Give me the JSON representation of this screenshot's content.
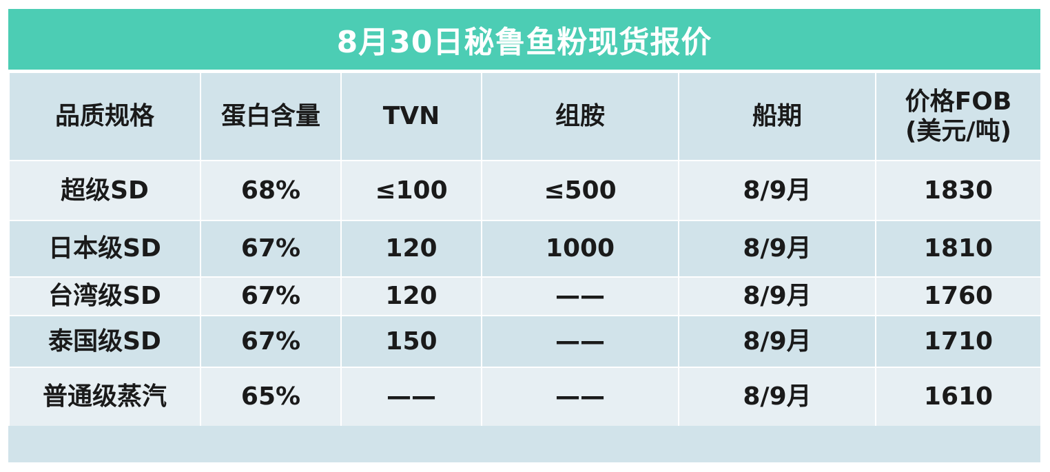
{
  "title": "8月30日秘鲁鱼粉现货报价",
  "columns": [
    "品质规格",
    "蛋白含量",
    "TVN",
    "组胺",
    "船期"
  ],
  "price_header": {
    "line1": "价格FOB",
    "line2": "(美元/吨)"
  },
  "rows": [
    [
      "超级SD",
      "68%",
      "≤100",
      "≤500",
      "8/9月",
      "1830"
    ],
    [
      "日本级SD",
      "67%",
      "120",
      "1000",
      "8/9月",
      "1810"
    ],
    [
      "台湾级SD",
      "67%",
      "120",
      "——",
      "8/9月",
      "1760"
    ],
    [
      "泰国级SD",
      "67%",
      "150",
      "——",
      "8/9月",
      "1710"
    ],
    [
      "普通级蒸汽",
      "65%",
      "——",
      "——",
      "8/9月",
      "1610"
    ]
  ],
  "colors": {
    "title_bg": "#4ccdb4",
    "row_dark": "#d1e3ea",
    "row_light": "#e7eff3"
  }
}
